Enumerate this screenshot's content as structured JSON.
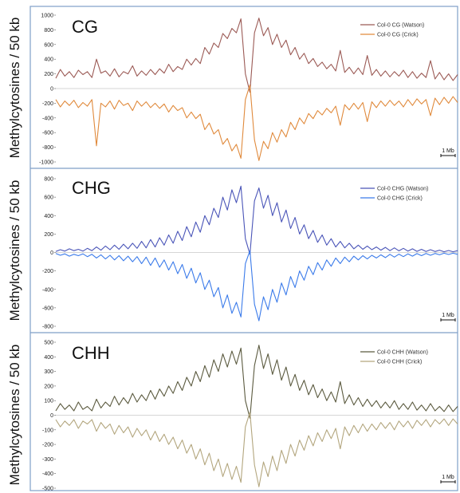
{
  "ylabel": "Methylcytosines / 50 kb",
  "scale_bar": "1 Mb",
  "chart_data": [
    {
      "type": "line",
      "title": "CG",
      "ylabel": "Methylcytosines / 50 kb",
      "ylim": [
        -1000,
        1000
      ],
      "yticks": [
        -1000,
        -800,
        -600,
        -400,
        -200,
        0,
        200,
        400,
        600,
        800,
        1000
      ],
      "grid": false,
      "legend": "top-right",
      "series": [
        {
          "name": "Col-0 CG (Watson)",
          "color": "#9b5a55",
          "values": [
            140,
            260,
            170,
            230,
            150,
            250,
            190,
            230,
            150,
            400,
            210,
            240,
            170,
            270,
            160,
            230,
            200,
            310,
            170,
            240,
            180,
            260,
            190,
            270,
            210,
            330,
            230,
            300,
            260,
            400,
            320,
            410,
            340,
            560,
            470,
            620,
            560,
            750,
            680,
            820,
            760,
            950,
            200,
            -50,
            760,
            960,
            720,
            830,
            600,
            740,
            560,
            660,
            460,
            560,
            400,
            480,
            340,
            410,
            300,
            360,
            270,
            330,
            240,
            520,
            220,
            290,
            200,
            280,
            190,
            450,
            180,
            260,
            170,
            240,
            160,
            230,
            170,
            250,
            150,
            230,
            140,
            210,
            150,
            380,
            130,
            220,
            120,
            200,
            110,
            190
          ]
        },
        {
          "name": "Col-0 CG (Crick)",
          "color": "#e08a3c",
          "values": [
            -150,
            -250,
            -170,
            -230,
            -160,
            -260,
            -190,
            -240,
            -150,
            -780,
            -200,
            -250,
            -170,
            -280,
            -160,
            -230,
            -200,
            -300,
            -170,
            -240,
            -180,
            -260,
            -200,
            -270,
            -210,
            -320,
            -230,
            -300,
            -260,
            -400,
            -320,
            -410,
            -350,
            -560,
            -470,
            -620,
            -560,
            -760,
            -680,
            -850,
            -760,
            -950,
            -150,
            50,
            -700,
            -980,
            -720,
            -820,
            -600,
            -730,
            -560,
            -660,
            -460,
            -560,
            -400,
            -480,
            -340,
            -410,
            -300,
            -360,
            -270,
            -330,
            -240,
            -500,
            -220,
            -290,
            -200,
            -280,
            -190,
            -450,
            -180,
            -260,
            -170,
            -240,
            -160,
            -230,
            -170,
            -250,
            -150,
            -230,
            -140,
            -210,
            -150,
            -370,
            -130,
            -220,
            -120,
            -200,
            -110,
            -190
          ]
        }
      ]
    },
    {
      "type": "line",
      "title": "CHG",
      "ylabel": "Methylcytosines / 50 kb",
      "ylim": [
        -800,
        800
      ],
      "yticks": [
        -800,
        -600,
        -400,
        -200,
        0,
        200,
        400,
        600,
        800
      ],
      "grid": false,
      "legend": "top-right",
      "series": [
        {
          "name": "Col-0 CHG (Watson)",
          "color": "#4a55b8",
          "values": [
            10,
            30,
            15,
            40,
            20,
            35,
            15,
            45,
            20,
            60,
            25,
            70,
            30,
            80,
            35,
            90,
            40,
            100,
            45,
            120,
            50,
            140,
            60,
            160,
            80,
            190,
            100,
            230,
            130,
            280,
            170,
            330,
            220,
            400,
            300,
            480,
            380,
            600,
            460,
            680,
            540,
            720,
            150,
            -20,
            560,
            700,
            480,
            620,
            400,
            540,
            330,
            460,
            260,
            380,
            200,
            300,
            150,
            240,
            110,
            190,
            80,
            150,
            60,
            120,
            50,
            100,
            40,
            80,
            35,
            70,
            30,
            60,
            25,
            55,
            20,
            50,
            18,
            45,
            15,
            40,
            12,
            35,
            10,
            30,
            10,
            25,
            8,
            22,
            8,
            20
          ]
        },
        {
          "name": "Col-0 CHG (Crick)",
          "color": "#3b7bea",
          "values": [
            -10,
            -30,
            -15,
            -40,
            -20,
            -35,
            -15,
            -45,
            -20,
            -60,
            -25,
            -70,
            -30,
            -80,
            -35,
            -90,
            -40,
            -100,
            -45,
            -120,
            -50,
            -140,
            -60,
            -160,
            -80,
            -190,
            -100,
            -230,
            -130,
            -280,
            -170,
            -330,
            -220,
            -400,
            -300,
            -480,
            -380,
            -600,
            -460,
            -660,
            -540,
            -700,
            -120,
            20,
            -560,
            -740,
            -480,
            -620,
            -400,
            -540,
            -330,
            -460,
            -260,
            -380,
            -200,
            -300,
            -150,
            -240,
            -110,
            -190,
            -80,
            -150,
            -60,
            -120,
            -50,
            -100,
            -40,
            -80,
            -35,
            -70,
            -30,
            -60,
            -25,
            -55,
            -20,
            -50,
            -18,
            -45,
            -15,
            -40,
            -12,
            -35,
            -10,
            -30,
            -10,
            -25,
            -8,
            -22,
            -8,
            -20
          ]
        }
      ]
    },
    {
      "type": "line",
      "title": "CHH",
      "ylabel": "Methylcytosines / 50 kb",
      "ylim": [
        -500,
        500
      ],
      "yticks": [
        -500,
        -400,
        -300,
        -200,
        -100,
        0,
        100,
        200,
        300,
        400,
        500
      ],
      "grid": false,
      "legend": "top-right",
      "series": [
        {
          "name": "Col-0 CHH (Watson)",
          "color": "#5b5a3f",
          "values": [
            30,
            80,
            40,
            70,
            30,
            90,
            40,
            60,
            30,
            110,
            50,
            90,
            60,
            130,
            70,
            120,
            80,
            150,
            90,
            140,
            100,
            170,
            110,
            180,
            130,
            200,
            150,
            230,
            170,
            260,
            200,
            300,
            230,
            340,
            260,
            380,
            300,
            420,
            330,
            440,
            350,
            460,
            100,
            -20,
            340,
            480,
            320,
            420,
            280,
            380,
            240,
            330,
            200,
            280,
            170,
            240,
            140,
            210,
            120,
            180,
            100,
            160,
            90,
            230,
            80,
            140,
            70,
            120,
            60,
            110,
            60,
            100,
            50,
            90,
            50,
            100,
            40,
            80,
            40,
            90,
            35,
            70,
            30,
            80,
            30,
            60,
            25,
            70,
            25,
            60
          ]
        },
        {
          "name": "Col-0 CHH (Crick)",
          "color": "#b3a67e",
          "values": [
            -30,
            -80,
            -40,
            -70,
            -30,
            -90,
            -40,
            -60,
            -30,
            -110,
            -50,
            -90,
            -60,
            -130,
            -70,
            -120,
            -80,
            -150,
            -90,
            -140,
            -100,
            -170,
            -110,
            -180,
            -130,
            -200,
            -150,
            -230,
            -170,
            -260,
            -200,
            -300,
            -230,
            -340,
            -260,
            -380,
            -300,
            -420,
            -330,
            -440,
            -350,
            -460,
            -80,
            20,
            -340,
            -490,
            -320,
            -420,
            -280,
            -380,
            -240,
            -330,
            -200,
            -280,
            -170,
            -240,
            -140,
            -210,
            -120,
            -180,
            -100,
            -160,
            -90,
            -230,
            -80,
            -140,
            -70,
            -120,
            -60,
            -110,
            -60,
            -100,
            -50,
            -90,
            -50,
            -100,
            -40,
            -80,
            -40,
            -90,
            -35,
            -70,
            -30,
            -80,
            -30,
            -60,
            -25,
            -70,
            -25,
            -60
          ]
        }
      ]
    }
  ]
}
